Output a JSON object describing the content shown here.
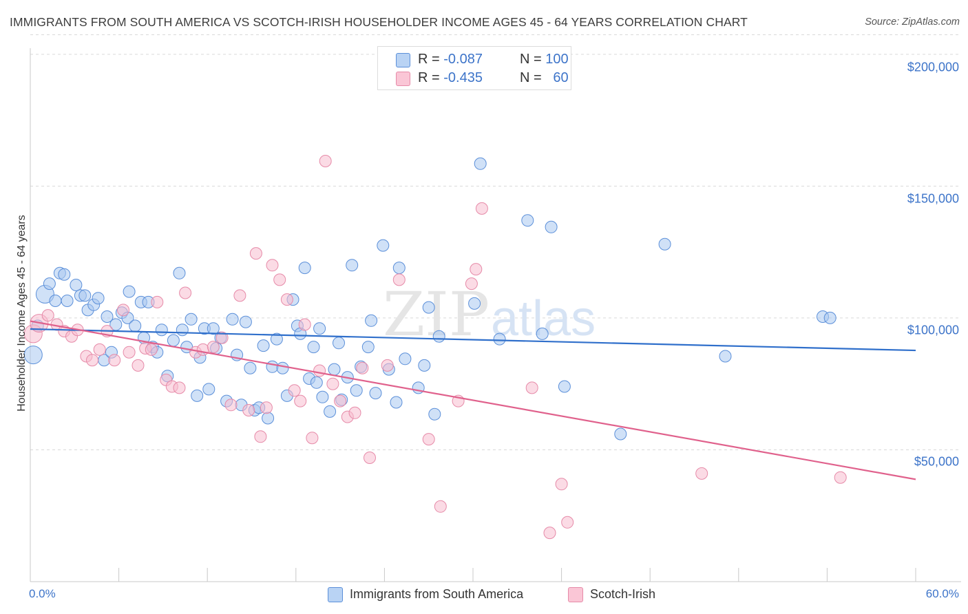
{
  "header": {
    "title": "IMMIGRANTS FROM SOUTH AMERICA VS SCOTCH-IRISH HOUSEHOLDER INCOME AGES 45 - 64 YEARS CORRELATION CHART",
    "source": "Source: ZipAtlas.com"
  },
  "watermark": {
    "part1": "ZIP",
    "part2": "atlas"
  },
  "legend_top": {
    "rows": [
      {
        "r_label": "R =",
        "r_value": "-0.087",
        "n_label": "N =",
        "n_value": "100"
      },
      {
        "r_label": "R =",
        "r_value": "-0.435",
        "n_label": "N =",
        "n_value": "60"
      }
    ]
  },
  "legend_bottom": {
    "items": [
      {
        "label": "Immigrants from South America"
      },
      {
        "label": "Scotch-Irish"
      }
    ]
  },
  "colors": {
    "blue_fill": "#a9c8f0",
    "blue_stroke": "#5b8fd9",
    "blue_line": "#2f6fcb",
    "pink_fill": "#f8bdd0",
    "pink_stroke": "#e68aa8",
    "pink_line": "#e0618c",
    "tick_text": "#3d74c9",
    "grid": "#d9d9d9"
  },
  "chart_data": {
    "type": "scatter",
    "title": "IMMIGRANTS FROM SOUTH AMERICA VS SCOTCH-IRISH HOUSEHOLDER INCOME AGES 45 - 64 YEARS CORRELATION CHART",
    "xlabel": "",
    "ylabel": "Householder Income Ages 45 - 64 years",
    "xlim": [
      0,
      60
    ],
    "ylim": [
      0,
      210000
    ],
    "x_tick_labels": [
      "0.0%",
      "60.0%"
    ],
    "y_ticks": [
      50000,
      100000,
      150000,
      200000
    ],
    "y_tick_labels": [
      "$50,000",
      "$100,000",
      "$150,000",
      "$200,000"
    ],
    "grid": true,
    "legend_position": "top-center",
    "series": [
      {
        "name": "Immigrants from South America",
        "r": -0.087,
        "n": 100,
        "trend": {
          "x": [
            0,
            60
          ],
          "y": [
            95800,
            87700
          ]
        },
        "points": [
          [
            0.2,
            86000
          ],
          [
            0.5,
            97000
          ],
          [
            1.0,
            109000
          ],
          [
            1.3,
            113000
          ],
          [
            1.7,
            106500
          ],
          [
            2.0,
            117000
          ],
          [
            2.3,
            116500
          ],
          [
            2.5,
            106500
          ],
          [
            3.1,
            112500
          ],
          [
            3.4,
            108500
          ],
          [
            3.7,
            108500
          ],
          [
            3.9,
            103000
          ],
          [
            4.3,
            105000
          ],
          [
            4.6,
            107500
          ],
          [
            5.0,
            84000
          ],
          [
            5.2,
            100500
          ],
          [
            5.5,
            87000
          ],
          [
            5.8,
            97500
          ],
          [
            6.2,
            102000
          ],
          [
            6.6,
            100000
          ],
          [
            6.7,
            110000
          ],
          [
            7.1,
            97000
          ],
          [
            7.5,
            106000
          ],
          [
            7.7,
            92500
          ],
          [
            8.0,
            106000
          ],
          [
            8.3,
            89000
          ],
          [
            8.6,
            87000
          ],
          [
            8.9,
            95500
          ],
          [
            9.3,
            78000
          ],
          [
            9.7,
            91500
          ],
          [
            10.1,
            117000
          ],
          [
            10.3,
            95500
          ],
          [
            10.6,
            89000
          ],
          [
            10.9,
            99500
          ],
          [
            11.3,
            70500
          ],
          [
            11.5,
            85000
          ],
          [
            11.8,
            96000
          ],
          [
            12.1,
            73000
          ],
          [
            12.4,
            96000
          ],
          [
            12.6,
            88500
          ],
          [
            12.9,
            92500
          ],
          [
            13.3,
            68500
          ],
          [
            13.7,
            99500
          ],
          [
            14.0,
            86000
          ],
          [
            14.3,
            67000
          ],
          [
            14.6,
            98500
          ],
          [
            14.9,
            81000
          ],
          [
            15.2,
            65000
          ],
          [
            15.5,
            66000
          ],
          [
            15.8,
            89500
          ],
          [
            16.1,
            62000
          ],
          [
            16.4,
            81500
          ],
          [
            16.7,
            92000
          ],
          [
            17.1,
            81000
          ],
          [
            17.4,
            70500
          ],
          [
            17.8,
            107000
          ],
          [
            18.1,
            97000
          ],
          [
            18.3,
            94000
          ],
          [
            18.6,
            119000
          ],
          [
            18.9,
            77000
          ],
          [
            19.2,
            89000
          ],
          [
            19.4,
            75500
          ],
          [
            19.6,
            96000
          ],
          [
            19.8,
            70000
          ],
          [
            20.3,
            64500
          ],
          [
            20.6,
            80500
          ],
          [
            20.9,
            90500
          ],
          [
            21.1,
            69000
          ],
          [
            21.5,
            77500
          ],
          [
            21.8,
            120000
          ],
          [
            22.1,
            72500
          ],
          [
            22.4,
            81500
          ],
          [
            22.9,
            89000
          ],
          [
            23.1,
            99000
          ],
          [
            23.4,
            71500
          ],
          [
            23.9,
            127500
          ],
          [
            24.3,
            80500
          ],
          [
            24.8,
            68000
          ],
          [
            25.0,
            119000
          ],
          [
            25.4,
            84500
          ],
          [
            26.3,
            73500
          ],
          [
            26.7,
            82000
          ],
          [
            27.0,
            104000
          ],
          [
            27.4,
            63500
          ],
          [
            27.7,
            93000
          ],
          [
            30.1,
            105500
          ],
          [
            30.5,
            158500
          ],
          [
            31.8,
            92000
          ],
          [
            33.7,
            137000
          ],
          [
            34.7,
            94000
          ],
          [
            35.3,
            134500
          ],
          [
            36.2,
            74000
          ],
          [
            40.0,
            56000
          ],
          [
            43.0,
            128000
          ],
          [
            47.1,
            85500
          ],
          [
            53.7,
            100500
          ],
          [
            54.2,
            100000
          ]
        ]
      },
      {
        "name": "Scotch-Irish",
        "r": -0.435,
        "n": 60,
        "trend": {
          "x": [
            0,
            60
          ],
          "y": [
            98800,
            38800
          ]
        },
        "points": [
          [
            0.2,
            94000
          ],
          [
            0.6,
            98000
          ],
          [
            1.2,
            101000
          ],
          [
            1.8,
            97500
          ],
          [
            2.3,
            95000
          ],
          [
            2.8,
            93000
          ],
          [
            3.2,
            95500
          ],
          [
            3.8,
            85500
          ],
          [
            4.2,
            84000
          ],
          [
            4.7,
            88000
          ],
          [
            5.2,
            95000
          ],
          [
            5.7,
            84000
          ],
          [
            6.3,
            103000
          ],
          [
            6.7,
            87000
          ],
          [
            7.3,
            82000
          ],
          [
            7.8,
            88500
          ],
          [
            8.2,
            88000
          ],
          [
            8.6,
            106000
          ],
          [
            9.2,
            76500
          ],
          [
            9.6,
            74000
          ],
          [
            10.1,
            73500
          ],
          [
            10.5,
            109500
          ],
          [
            11.2,
            87000
          ],
          [
            11.7,
            88000
          ],
          [
            12.4,
            89000
          ],
          [
            13.0,
            92500
          ],
          [
            13.6,
            67000
          ],
          [
            14.2,
            108500
          ],
          [
            14.8,
            65000
          ],
          [
            15.3,
            124500
          ],
          [
            15.6,
            55000
          ],
          [
            16.0,
            66000
          ],
          [
            16.4,
            120000
          ],
          [
            16.9,
            114500
          ],
          [
            17.4,
            107000
          ],
          [
            17.9,
            72500
          ],
          [
            18.3,
            68500
          ],
          [
            18.6,
            97500
          ],
          [
            19.1,
            54500
          ],
          [
            19.6,
            80000
          ],
          [
            20.0,
            159500
          ],
          [
            20.5,
            75000
          ],
          [
            21.0,
            68500
          ],
          [
            21.5,
            62500
          ],
          [
            22.0,
            64000
          ],
          [
            22.5,
            81000
          ],
          [
            23.0,
            47000
          ],
          [
            24.2,
            82000
          ],
          [
            25.0,
            114500
          ],
          [
            27.0,
            54000
          ],
          [
            27.8,
            28500
          ],
          [
            29.0,
            68500
          ],
          [
            29.9,
            113000
          ],
          [
            30.2,
            118500
          ],
          [
            30.6,
            141500
          ],
          [
            34.0,
            73500
          ],
          [
            35.2,
            18500
          ],
          [
            36.0,
            37000
          ],
          [
            36.4,
            22500
          ],
          [
            45.5,
            41000
          ],
          [
            54.9,
            39500
          ]
        ]
      }
    ]
  }
}
